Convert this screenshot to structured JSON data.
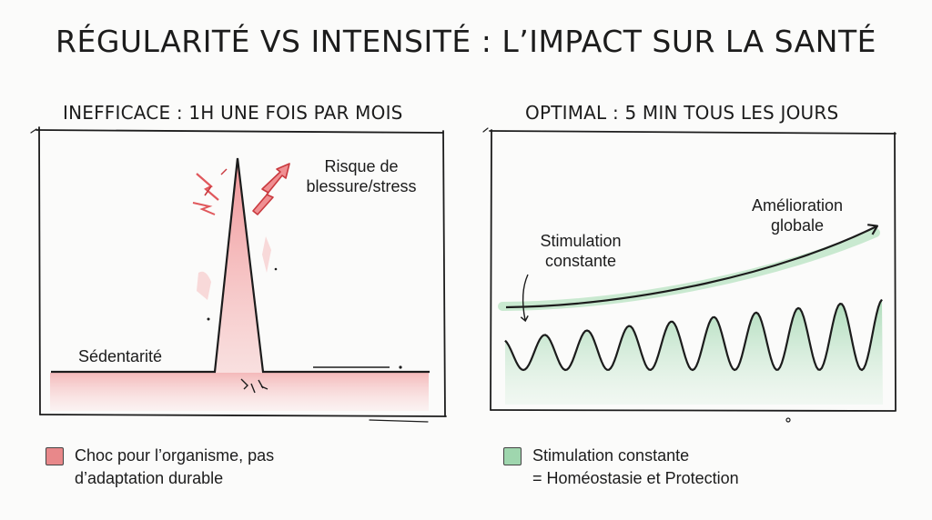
{
  "title": "RÉGULARITÉ VS INTENSITÉ : L’IMPACT SUR LA SANTÉ",
  "left_panel": {
    "heading": "INEFFICACE : 1H UNE FOIS PAR MOIS",
    "label_baseline": "Sédentarité",
    "label_risk_line1": "Risque de",
    "label_risk_line2": "blessure/stress",
    "legend_line1": "Choc pour l’organisme, pas",
    "legend_line2": "d’adaptation durable",
    "color": "#e8888a"
  },
  "right_panel": {
    "heading": "OPTIMAL : 5 MIN TOUS LES JOURS",
    "label_stim_line1": "Stimulation",
    "label_stim_line2": "constante",
    "label_improve_line1": "Amélioration",
    "label_improve_line2": "globale",
    "legend_line1": "Stimulation constante",
    "legend_line2": "= Homéostasie et Protection",
    "color": "#9fd6ae"
  }
}
